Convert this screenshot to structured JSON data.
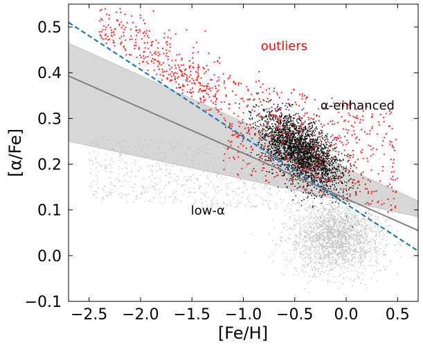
{
  "chart_data": {
    "type": "scatter",
    "title": "",
    "xlabel": "[Fe/H]",
    "ylabel": "[α/Fe]",
    "xlim": [
      -2.7,
      0.7
    ],
    "ylim": [
      -0.1,
      0.55
    ],
    "x_ticks": [
      {
        "value": -2.5,
        "label": "−2.5"
      },
      {
        "value": -2.0,
        "label": "−2.0"
      },
      {
        "value": -1.5,
        "label": "−1.5"
      },
      {
        "value": -1.0,
        "label": "−1.0"
      },
      {
        "value": -0.5,
        "label": "−0.5"
      },
      {
        "value": 0.0,
        "label": "0.0"
      },
      {
        "value": 0.5,
        "label": "0.5"
      }
    ],
    "y_ticks": [
      {
        "value": -0.1,
        "label": "−0.1"
      },
      {
        "value": 0.0,
        "label": "0.0"
      },
      {
        "value": 0.1,
        "label": "0.1"
      },
      {
        "value": 0.2,
        "label": "0.2"
      },
      {
        "value": 0.3,
        "label": "0.3"
      },
      {
        "value": 0.4,
        "label": "0.4"
      },
      {
        "value": 0.5,
        "label": "0.5"
      }
    ],
    "grid": false,
    "annotations": [
      {
        "text": "outliers",
        "x": -0.83,
        "y": 0.46,
        "color": "#ff0000"
      },
      {
        "text": "α-enhanced",
        "x": -0.25,
        "y": 0.33,
        "color": "#000000"
      },
      {
        "text": "low-α",
        "x": -1.51,
        "y": 0.1,
        "color": "#000000"
      }
    ],
    "fit_line": {
      "x": [
        -2.7,
        0.7
      ],
      "y": [
        0.393,
        0.055
      ],
      "color": "#808080"
    },
    "fit_band": {
      "x": [
        -2.7,
        0.7
      ],
      "upper": [
        0.465,
        0.12
      ],
      "lower": [
        0.25,
        0.085
      ],
      "color": "#d3d3d3"
    },
    "dividing_line": {
      "x": [
        -2.7,
        0.7
      ],
      "y": [
        0.51,
        0.01
      ],
      "color": "#1f77b4",
      "style": "dashed"
    },
    "populations": [
      {
        "name": "low-α disk",
        "color": "#c0c0c0",
        "center": [
          -0.1,
          0.04
        ],
        "spread": [
          0.22,
          0.04
        ]
      },
      {
        "name": "α-enhanced",
        "color": "#000000",
        "center": [
          -0.45,
          0.23
        ],
        "spread": [
          0.2,
          0.035
        ]
      },
      {
        "name": "outliers",
        "color": "#ff0000",
        "center": [
          -0.7,
          0.28
        ],
        "spread": [
          0.55,
          0.07
        ]
      }
    ]
  }
}
